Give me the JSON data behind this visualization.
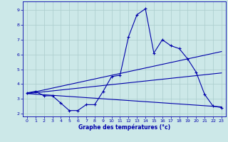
{
  "xlabel": "Graphe des températures (°c)",
  "bg_color": "#cce8e8",
  "grid_color": "#aacccc",
  "line_color": "#0000aa",
  "xlim": [
    -0.5,
    23.5
  ],
  "ylim": [
    1.8,
    9.6
  ],
  "xticks": [
    0,
    1,
    2,
    3,
    4,
    5,
    6,
    7,
    8,
    9,
    10,
    11,
    12,
    13,
    14,
    15,
    16,
    17,
    18,
    19,
    20,
    21,
    22,
    23
  ],
  "yticks": [
    2,
    3,
    4,
    5,
    6,
    7,
    8,
    9
  ],
  "line1_x": [
    0,
    1,
    2,
    3,
    4,
    5,
    6,
    7,
    8,
    9,
    10,
    11,
    12,
    13,
    14,
    15,
    16,
    17,
    18,
    19,
    20,
    21,
    22,
    23
  ],
  "line1_y": [
    3.4,
    3.5,
    3.2,
    3.2,
    2.7,
    2.2,
    2.2,
    2.6,
    2.6,
    3.5,
    4.5,
    4.6,
    7.2,
    8.7,
    9.1,
    6.1,
    7.0,
    6.6,
    6.4,
    5.7,
    4.8,
    3.3,
    2.5,
    2.4
  ],
  "line2_x": [
    0,
    23
  ],
  "line2_y": [
    3.35,
    6.2
  ],
  "line3_x": [
    0,
    23
  ],
  "line3_y": [
    3.35,
    4.75
  ],
  "line4_x": [
    0,
    23
  ],
  "line4_y": [
    3.35,
    2.45
  ]
}
